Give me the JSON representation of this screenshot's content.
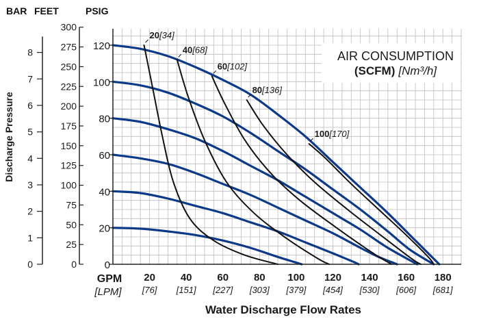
{
  "chart_data": {
    "type": "line",
    "title": {
      "line1": "AIR CONSUMPTION",
      "line2_bold": "(SCFM)",
      "line2_italic": "[Nm³/h]"
    },
    "xlabel": "Water Discharge Flow Rates",
    "ylabel": "Discharge Pressure",
    "x_units": {
      "primary": "GPM",
      "secondary": "[LPM]"
    },
    "x_ticks": [
      {
        "gpm": 20,
        "label": "20",
        "lpm": "[76]"
      },
      {
        "gpm": 40,
        "label": "40",
        "lpm": "[151]"
      },
      {
        "gpm": 60,
        "label": "60",
        "lpm": "[227]"
      },
      {
        "gpm": 80,
        "label": "80",
        "lpm": "[303]"
      },
      {
        "gpm": 100,
        "label": "100",
        "lpm": "[379]"
      },
      {
        "gpm": 120,
        "label": "120",
        "lpm": "[454]"
      },
      {
        "gpm": 140,
        "label": "140",
        "lpm": "[530]"
      },
      {
        "gpm": 160,
        "label": "160",
        "lpm": "[606]"
      },
      {
        "gpm": 180,
        "label": "180",
        "lpm": "[681]"
      }
    ],
    "xlim": [
      0,
      190
    ],
    "ylim": [
      0,
      129
    ],
    "y_ticks_psig": [
      "0",
      "20",
      "40",
      "60",
      "80",
      "100",
      "120"
    ],
    "extra_axes": {
      "bar": {
        "header": "BAR",
        "ticks": [
          "0",
          "1",
          "2",
          "3",
          "4",
          "5",
          "6",
          "7",
          "8"
        ]
      },
      "feet": {
        "header": "FEET",
        "ticks": [
          "0",
          "25",
          "50",
          "75",
          "100",
          "125",
          "150",
          "175",
          "200",
          "225",
          "250",
          "275",
          "300"
        ]
      },
      "psig": {
        "header": "PSIG"
      }
    },
    "grid": true,
    "performance_curves": [
      {
        "inlet_psig": 120,
        "points": [
          [
            0,
            120
          ],
          [
            15,
            118
          ],
          [
            30,
            114
          ],
          [
            45,
            108
          ],
          [
            60,
            101
          ],
          [
            75,
            93
          ],
          [
            90,
            82
          ],
          [
            105,
            70
          ],
          [
            120,
            56
          ],
          [
            135,
            42
          ],
          [
            150,
            28
          ],
          [
            165,
            13
          ],
          [
            178,
            0
          ]
        ]
      },
      {
        "inlet_psig": 100,
        "points": [
          [
            0,
            100
          ],
          [
            15,
            98
          ],
          [
            30,
            94
          ],
          [
            45,
            88
          ],
          [
            60,
            81
          ],
          [
            75,
            72
          ],
          [
            90,
            62
          ],
          [
            105,
            52
          ],
          [
            120,
            41
          ],
          [
            135,
            30
          ],
          [
            150,
            18
          ],
          [
            162,
            8
          ],
          [
            175,
            0
          ]
        ]
      },
      {
        "inlet_psig": 80,
        "points": [
          [
            0,
            80
          ],
          [
            15,
            78
          ],
          [
            30,
            74
          ],
          [
            45,
            69
          ],
          [
            60,
            62
          ],
          [
            75,
            54
          ],
          [
            90,
            46
          ],
          [
            105,
            37
          ],
          [
            120,
            28
          ],
          [
            135,
            19
          ],
          [
            150,
            9
          ],
          [
            166,
            0
          ]
        ]
      },
      {
        "inlet_psig": 60,
        "points": [
          [
            0,
            60
          ],
          [
            15,
            58
          ],
          [
            30,
            55
          ],
          [
            45,
            50
          ],
          [
            60,
            44
          ],
          [
            75,
            38
          ],
          [
            90,
            31
          ],
          [
            105,
            24
          ],
          [
            120,
            17
          ],
          [
            135,
            9
          ],
          [
            145,
            4
          ],
          [
            155,
            0
          ]
        ]
      },
      {
        "inlet_psig": 40,
        "points": [
          [
            0,
            40
          ],
          [
            15,
            39
          ],
          [
            30,
            36
          ],
          [
            45,
            32
          ],
          [
            60,
            28
          ],
          [
            75,
            23
          ],
          [
            90,
            18
          ],
          [
            105,
            12
          ],
          [
            120,
            6
          ],
          [
            132,
            1
          ],
          [
            134,
            0
          ]
        ]
      },
      {
        "inlet_psig": 20,
        "points": [
          [
            0,
            20
          ],
          [
            15,
            19.5
          ],
          [
            30,
            18
          ],
          [
            45,
            16
          ],
          [
            60,
            13
          ],
          [
            75,
            9
          ],
          [
            90,
            4
          ],
          [
            103,
            0
          ]
        ]
      }
    ],
    "air_consumption_curves": [
      {
        "label": "20",
        "label_metric": "[34]",
        "points": [
          [
            17,
            120
          ],
          [
            22,
            95
          ],
          [
            27,
            70
          ],
          [
            33,
            45
          ],
          [
            42,
            25
          ],
          [
            55,
            13
          ],
          [
            72,
            5
          ],
          [
            90,
            0
          ]
        ]
      },
      {
        "label": "40",
        "label_metric": "[68]",
        "points": [
          [
            35,
            112
          ],
          [
            41,
            92
          ],
          [
            50,
            68
          ],
          [
            62,
            45
          ],
          [
            77,
            28
          ],
          [
            95,
            14
          ],
          [
            112,
            3
          ],
          [
            118,
            0
          ]
        ]
      },
      {
        "label": "60",
        "label_metric": "[102]",
        "points": [
          [
            54,
            103
          ],
          [
            61,
            88
          ],
          [
            72,
            68
          ],
          [
            86,
            50
          ],
          [
            102,
            35
          ],
          [
            122,
            20
          ],
          [
            142,
            6
          ],
          [
            152,
            0
          ]
        ]
      },
      {
        "label": "80",
        "label_metric": "[136]",
        "points": [
          [
            73,
            90
          ],
          [
            82,
            76
          ],
          [
            95,
            60
          ],
          [
            110,
            45
          ],
          [
            128,
            30
          ],
          [
            146,
            16
          ],
          [
            163,
            3
          ],
          [
            168,
            0
          ]
        ]
      },
      {
        "label": "100",
        "label_metric": "[170]",
        "points": [
          [
            107,
            66
          ],
          [
            116,
            58
          ],
          [
            130,
            44
          ],
          [
            145,
            30
          ],
          [
            160,
            16
          ],
          [
            172,
            4
          ],
          [
            175,
            0
          ]
        ]
      }
    ]
  },
  "colors": {
    "performance_line": "#0d3a88",
    "air_line": "#111111",
    "grid": "#bdbdbd",
    "frame": "#222222",
    "title_box": "#ffffff"
  }
}
